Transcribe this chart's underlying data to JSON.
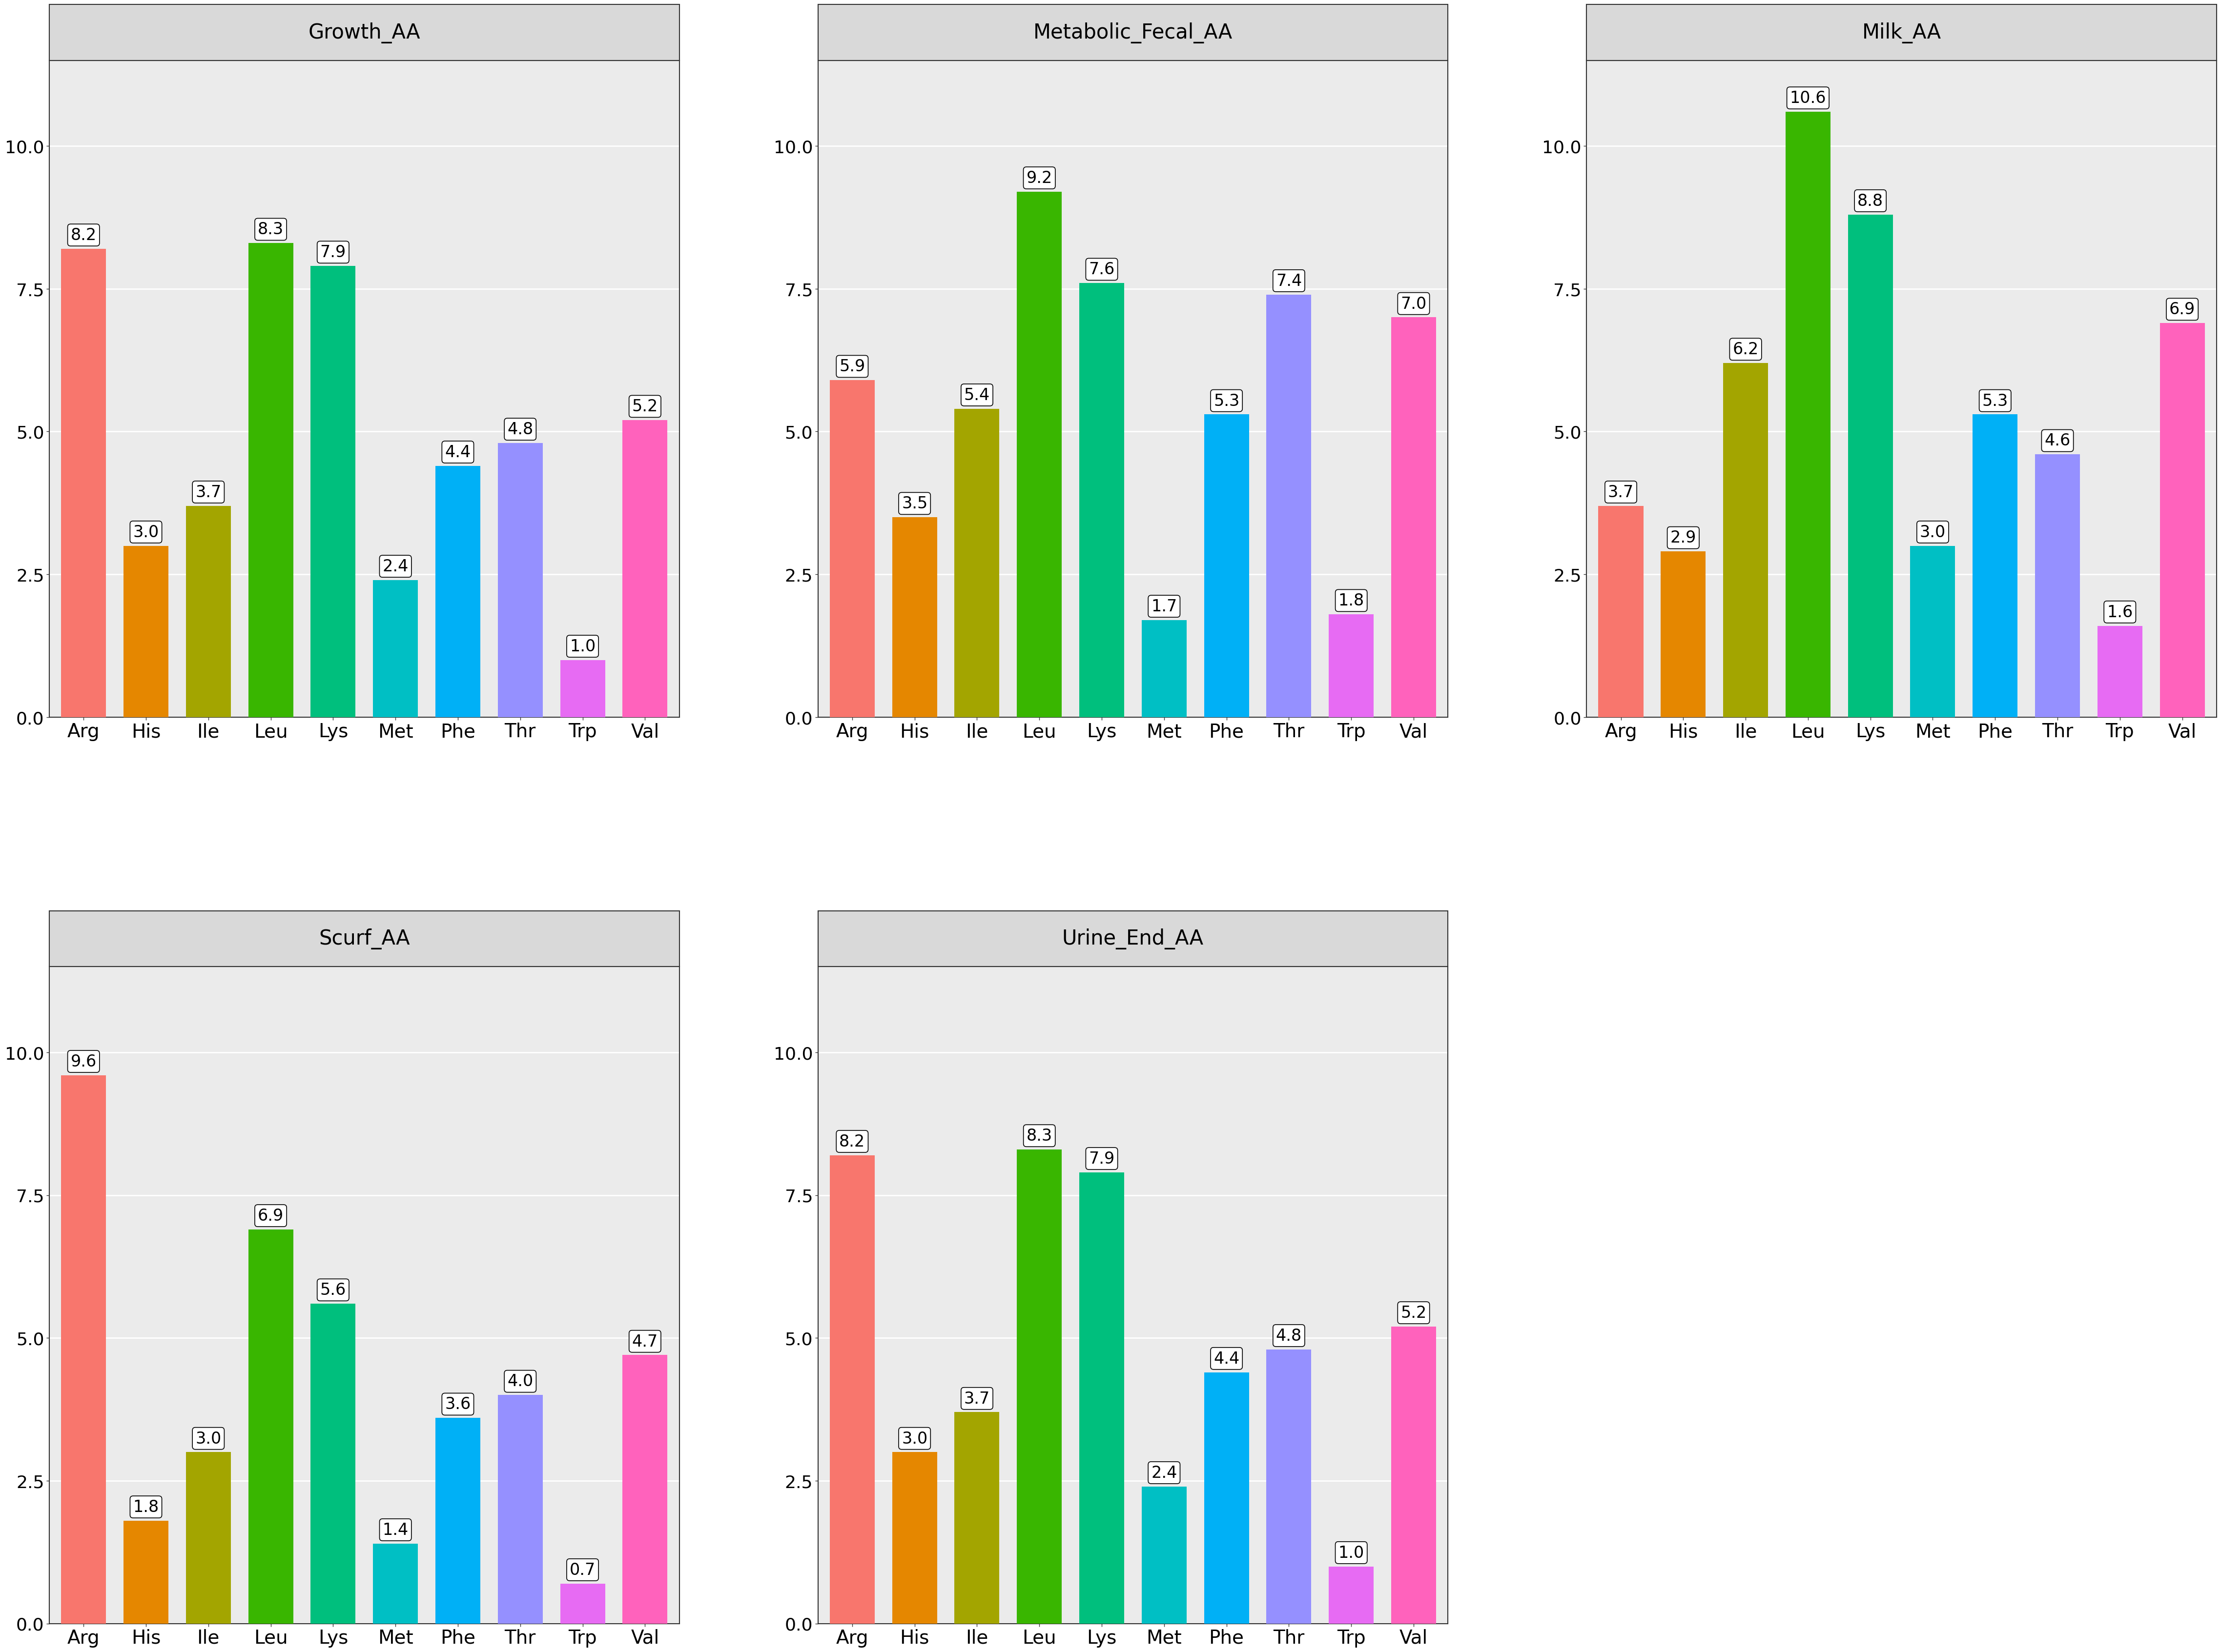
{
  "categories": [
    "Arg",
    "His",
    "Ile",
    "Leu",
    "Lys",
    "Met",
    "Phe",
    "Thr",
    "Trp",
    "Val"
  ],
  "panels": {
    "Growth_AA": [
      8.2,
      3.0,
      3.7,
      8.3,
      7.9,
      2.4,
      4.4,
      4.8,
      1.0,
      5.2
    ],
    "Metabolic_Fecal_AA": [
      5.9,
      3.5,
      5.4,
      9.2,
      7.6,
      1.7,
      5.3,
      7.4,
      1.8,
      7.0
    ],
    "Milk_AA": [
      3.7,
      2.9,
      6.2,
      10.6,
      8.8,
      3.0,
      5.3,
      4.6,
      1.6,
      6.9
    ],
    "Scurf_AA": [
      9.6,
      1.8,
      3.0,
      6.9,
      5.6,
      1.4,
      3.6,
      4.0,
      0.7,
      4.7
    ],
    "Urine_End_AA": [
      8.2,
      3.0,
      3.7,
      8.3,
      7.9,
      2.4,
      4.4,
      4.8,
      1.0,
      5.2
    ]
  },
  "panel_order": [
    "Growth_AA",
    "Metabolic_Fecal_AA",
    "Milk_AA",
    "Scurf_AA",
    "Urine_End_AA"
  ],
  "bar_colors": [
    "#F8766D",
    "#E58700",
    "#A3A500",
    "#39B600",
    "#00BF7D",
    "#00BFC4",
    "#00B0F6",
    "#9590FF",
    "#E76BF3",
    "#FF62BC"
  ],
  "ylim": [
    0,
    11.5
  ],
  "yticks": [
    0.0,
    2.5,
    5.0,
    7.5,
    10.0
  ],
  "background_color": "#FFFFFF",
  "panel_bg": "#EBEBEB",
  "strip_bg": "#D9D9D9",
  "grid_color": "#FFFFFF",
  "panel_border_color": "#333333",
  "label_fontsize": 28,
  "tick_fontsize": 26,
  "strip_fontsize": 30,
  "value_fontsize": 24
}
